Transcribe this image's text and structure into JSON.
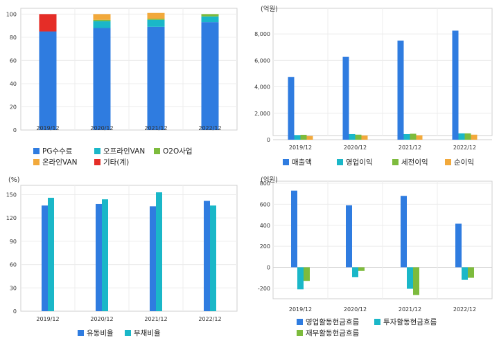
{
  "chart_data": [
    {
      "type": "bar",
      "stacked": true,
      "categories": [
        "2019/12",
        "2020/12",
        "2021/12",
        "2022/12"
      ],
      "ylim": [
        0,
        105
      ],
      "yticks": [
        0,
        20,
        40,
        60,
        80,
        100
      ],
      "series": [
        {
          "name": "PG수수료",
          "color": "#2f7ce0",
          "values": [
            85,
            88,
            89,
            93
          ]
        },
        {
          "name": "오프라인VAN",
          "color": "#1ab7c8",
          "values": [
            0,
            6,
            6,
            5
          ]
        },
        {
          "name": "O2O사업",
          "color": "#7dbb3d",
          "values": [
            0,
            1,
            1,
            2
          ]
        },
        {
          "name": "온라인VAN",
          "color": "#f2a93b",
          "values": [
            0,
            5,
            5,
            0
          ]
        },
        {
          "name": "기타(계)",
          "color": "#e52d27",
          "values": [
            15,
            0,
            0,
            0
          ]
        }
      ],
      "grid": true
    },
    {
      "type": "bar",
      "unit": "(억원)",
      "categories": [
        "2019/12",
        "2020/12",
        "2021/12",
        "2022/12"
      ],
      "ylim": [
        0,
        9000
      ],
      "yticks": [
        0,
        2000,
        4000,
        6000,
        8000
      ],
      "yticklabels": [
        "0",
        "2,000",
        "4,000",
        "6,000",
        "8,000"
      ],
      "series": [
        {
          "name": "매출액",
          "color": "#2f7ce0",
          "values": [
            4750,
            6280,
            7500,
            8250
          ]
        },
        {
          "name": "영업이익",
          "color": "#1ab7c8",
          "values": [
            350,
            420,
            420,
            480
          ]
        },
        {
          "name": "세전이익",
          "color": "#7dbb3d",
          "values": [
            370,
            380,
            450,
            480
          ]
        },
        {
          "name": "순이익",
          "color": "#f2a93b",
          "values": [
            280,
            320,
            340,
            380
          ]
        }
      ],
      "grid": true
    },
    {
      "type": "bar",
      "unit": "(%)",
      "categories": [
        "2019/12",
        "2020/12",
        "2021/12",
        "2022/12"
      ],
      "ylim": [
        0,
        162
      ],
      "yticks": [
        0,
        30,
        60,
        90,
        120,
        150
      ],
      "series": [
        {
          "name": "유동비율",
          "color": "#2f7ce0",
          "values": [
            136,
            138,
            135,
            142
          ]
        },
        {
          "name": "부채비율",
          "color": "#1ab7c8",
          "values": [
            146,
            144,
            153,
            136
          ]
        }
      ],
      "grid": true
    },
    {
      "type": "bar",
      "unit": "(억원)",
      "categories": [
        "2019/12",
        "2020/12",
        "2021/12",
        "2022/12"
      ],
      "ylim": [
        -300,
        820
      ],
      "yticks": [
        -200,
        0,
        200,
        400,
        600,
        800
      ],
      "series": [
        {
          "name": "영업활동현금흐름",
          "color": "#2f7ce0",
          "values": [
            730,
            590,
            680,
            415
          ]
        },
        {
          "name": "투자활동현금흐름",
          "color": "#1ab7c8",
          "values": [
            -210,
            -95,
            -205,
            -120
          ]
        },
        {
          "name": "재무활동현금흐름",
          "color": "#7dbb3d",
          "values": [
            -130,
            -35,
            -265,
            -100
          ]
        }
      ],
      "grid": true
    }
  ]
}
